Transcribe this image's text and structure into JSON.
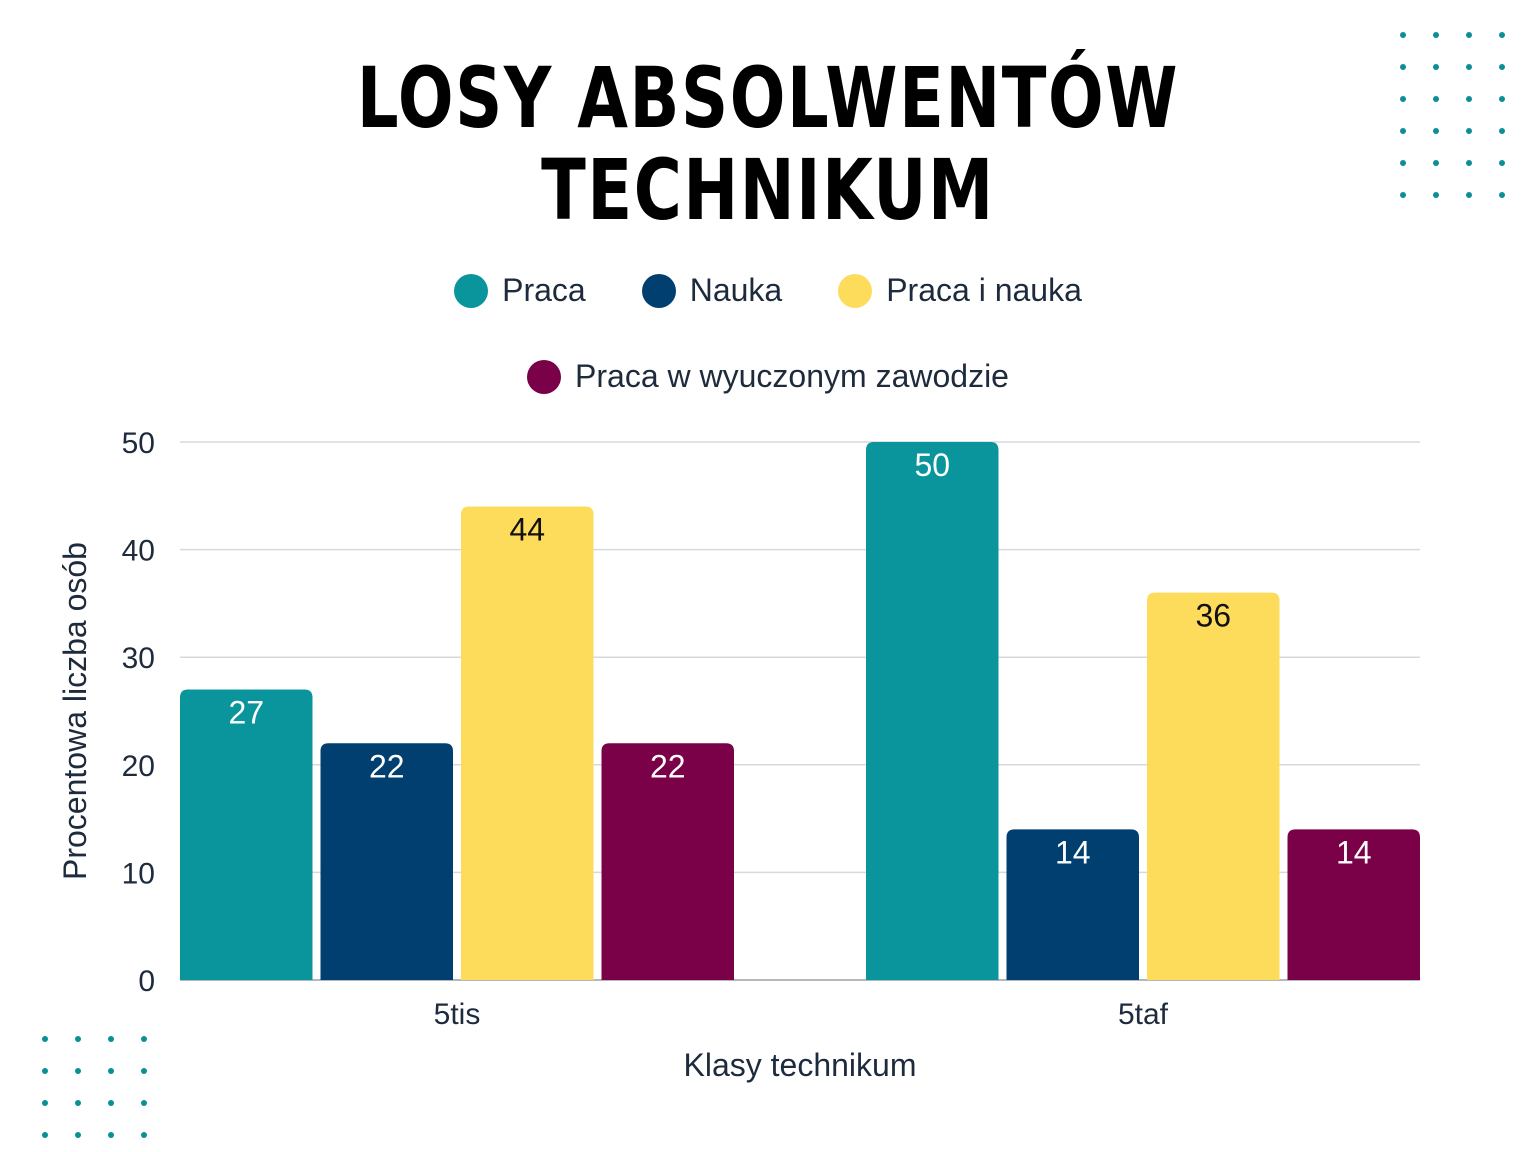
{
  "chart_data": {
    "type": "bar",
    "title_lines": [
      "LOSY ABSOLWENTÓW",
      "TECHNIKUM"
    ],
    "xlabel": "Klasy technikum",
    "ylabel": "Procentowa liczba osób",
    "categories": [
      "5tis",
      "5taf"
    ],
    "ylim": [
      0,
      50
    ],
    "yticks": [
      "0",
      "10",
      "20",
      "30",
      "40",
      "50"
    ],
    "grid": true,
    "legend_position": "top-center",
    "series": [
      {
        "name": "Praca",
        "values": [
          27,
          50
        ],
        "color": "#0a959c",
        "label_color": "#ffffff"
      },
      {
        "name": "Nauka",
        "values": [
          22,
          14
        ],
        "color": "#003f70",
        "label_color": "#ffffff"
      },
      {
        "name": "Praca i nauka",
        "values": [
          44,
          36
        ],
        "color": "#fddc5c",
        "label_color": "#111111"
      },
      {
        "name": "Praca w wyuczonym zawodzie",
        "values": [
          22,
          14
        ],
        "color": "#7a0048",
        "label_color": "#ffffff"
      }
    ]
  }
}
